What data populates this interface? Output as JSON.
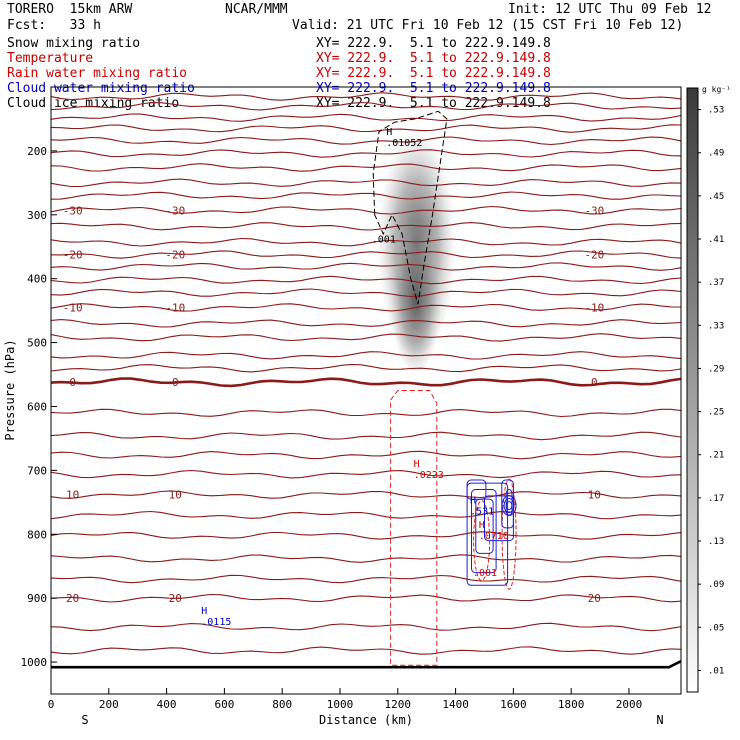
{
  "header": {
    "model": "TORERO  15km ARW",
    "center": "NCAR/MMM",
    "init": "Init: 12 UTC Thu 09 Feb 12",
    "fcst": "Fcst:   33 h",
    "valid": "Valid: 21 UTC Fri 10 Feb 12 (15 CST Fri 10 Feb 12)"
  },
  "legend": [
    {
      "label": "Snow mixing ratio",
      "xy": "XY= 222.9.  5.1 to 222.9.149.8",
      "color": "#000000"
    },
    {
      "label": "Temperature",
      "xy": "XY= 222.9.  5.1 to 222.9.149.8",
      "color": "#c00000"
    },
    {
      "label": "Rain water mixing ratio",
      "xy": "XY= 222.9.  5.1 to 222.9.149.8",
      "color": "#d00000"
    },
    {
      "label": "Cloud water mixing ratio",
      "xy": "XY= 222.9.  5.1 to 222.9.149.8",
      "color": "#0000c0"
    },
    {
      "label": "Cloud ice mixing ratio",
      "xy": "XY= 222.9.  5.1 to 222.9.149.8",
      "color": "#000000"
    }
  ],
  "chart_data": {
    "type": "cross-section",
    "xlabel": "Distance (km)",
    "ylabel": "Pressure (hPa)",
    "xlim": [
      0,
      2180
    ],
    "ylim": [
      1050,
      100
    ],
    "x_ticks": [
      0,
      200,
      400,
      600,
      800,
      1000,
      1200,
      1400,
      1600,
      1800,
      2000
    ],
    "y_ticks": [
      200,
      300,
      400,
      500,
      600,
      700,
      800,
      900,
      1000
    ],
    "left_label": "S",
    "right_label": "N",
    "colorbar": {
      "unit": "g kg⁻¹",
      "levels": [
        ".01",
        ".05",
        ".09",
        ".13",
        ".17",
        ".21",
        ".25",
        ".29",
        ".33",
        ".37",
        ".41",
        ".45",
        ".49",
        ".53"
      ]
    },
    "isotherms": [
      {
        "p": 115
      },
      {
        "p": 130
      },
      {
        "p": 148
      },
      {
        "p": 165
      },
      {
        "p": 184
      },
      {
        "p": 204
      },
      {
        "p": 226
      },
      {
        "p": 250
      },
      {
        "p": 270
      },
      {
        "p": 293,
        "label": "-30"
      },
      {
        "p": 318
      },
      {
        "p": 343
      },
      {
        "p": 362,
        "label": "-20"
      },
      {
        "p": 381
      },
      {
        "p": 402
      },
      {
        "p": 422
      },
      {
        "p": 445,
        "label": "-10"
      },
      {
        "p": 470
      },
      {
        "p": 492
      },
      {
        "p": 520
      },
      {
        "p": 540
      },
      {
        "p": 562,
        "label": "0",
        "bold": true
      },
      {
        "p": 610
      },
      {
        "p": 646
      },
      {
        "p": 676
      },
      {
        "p": 706
      },
      {
        "p": 738,
        "label": "10"
      },
      {
        "p": 770
      },
      {
        "p": 802
      },
      {
        "p": 838
      },
      {
        "p": 870
      },
      {
        "p": 900,
        "label": "20"
      },
      {
        "p": 945
      },
      {
        "p": 982
      }
    ],
    "surface_p": 1008,
    "maxima": [
      {
        "x": 1160,
        "p": 175,
        "label": "H",
        "value": ".01052",
        "color": "#000000"
      },
      {
        "x": 1255,
        "p": 695,
        "label": "H",
        "value": ".0223",
        "color": "#d00000"
      },
      {
        "x": 1450,
        "p": 752,
        "label": "H",
        "value": ".531",
        "color": "#0000c0"
      },
      {
        "x": 1480,
        "p": 790,
        "label": "H",
        "value": ".0710",
        "color": "#d00000"
      },
      {
        "x": 520,
        "p": 925,
        "label": "H",
        "value": ".0115",
        "color": "#0000c0"
      }
    ],
    "ice_contour_label": ".001",
    "rain_contour_label": ".001"
  }
}
